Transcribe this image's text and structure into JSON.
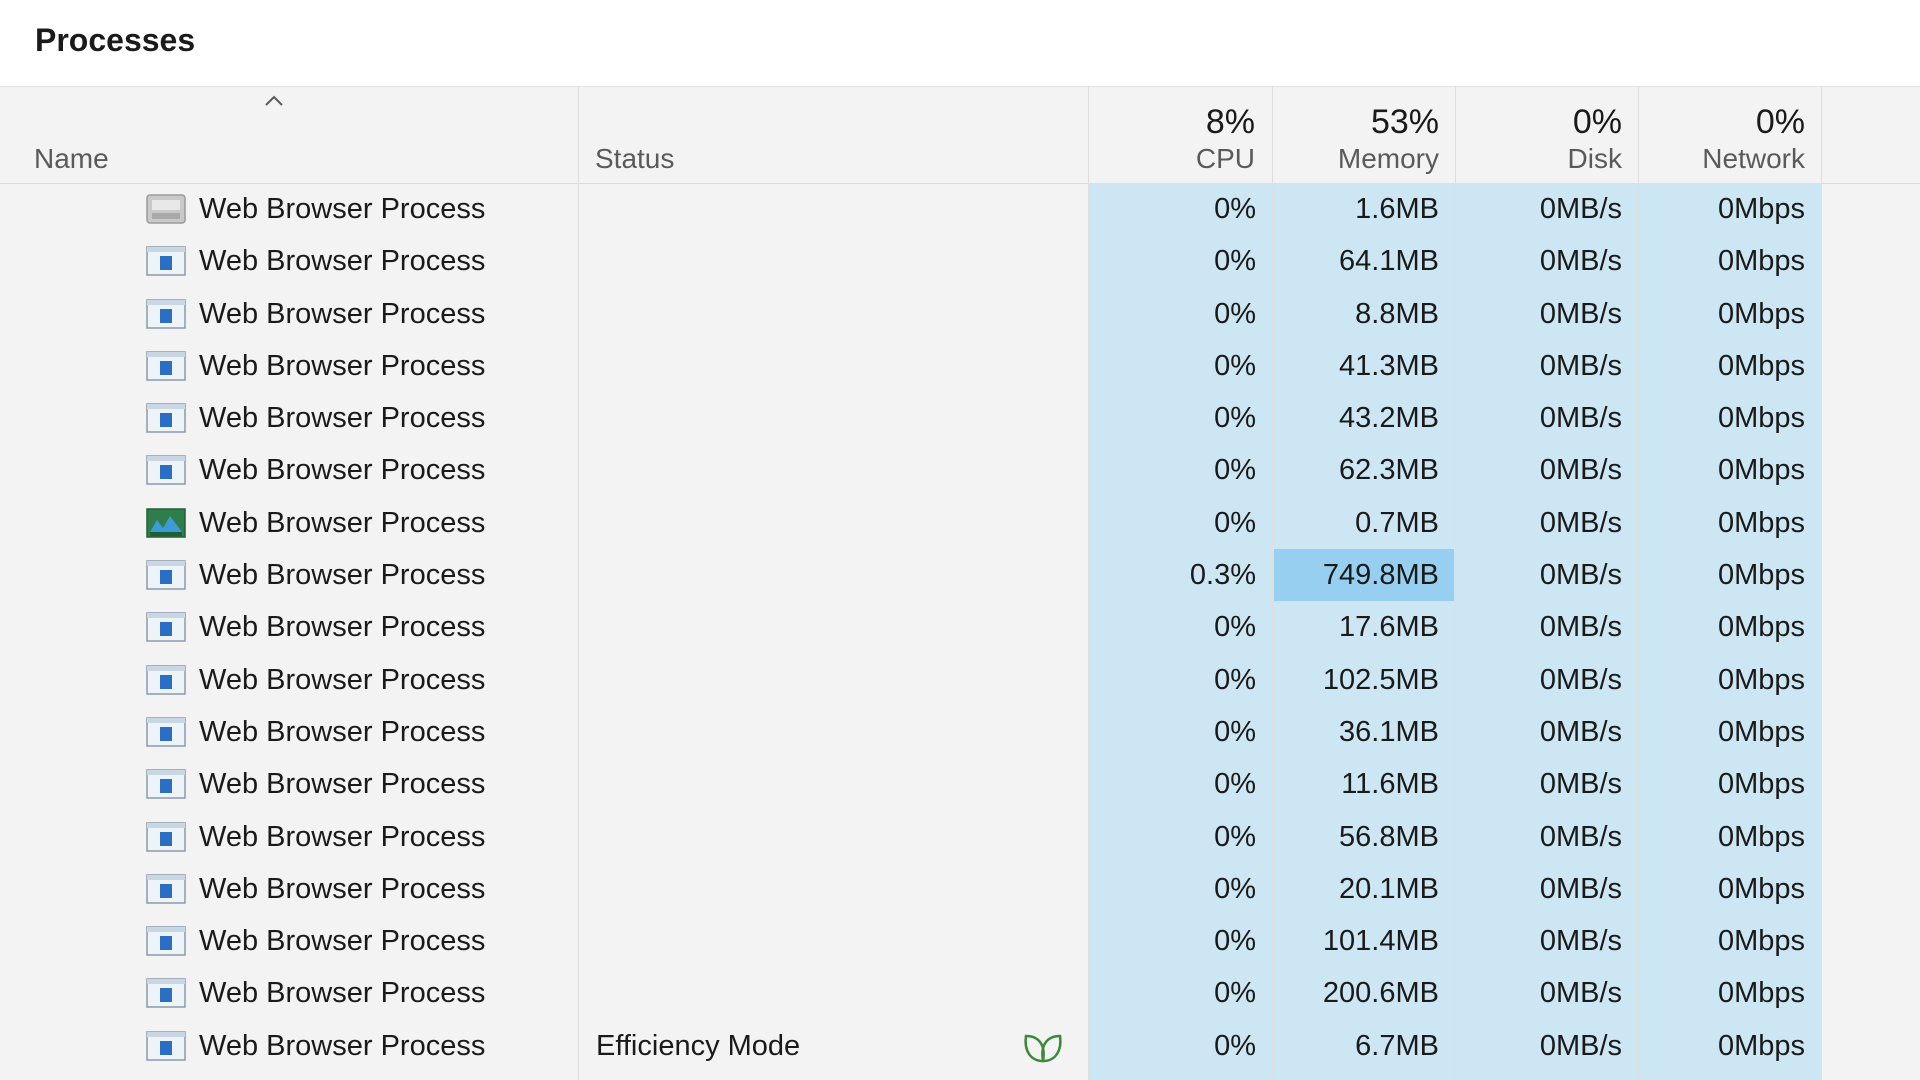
{
  "window": {
    "title": "Processes"
  },
  "columns": {
    "name": {
      "label": "Name"
    },
    "status": {
      "label": "Status"
    },
    "cpu": {
      "label": "CPU",
      "total": "8%"
    },
    "memory": {
      "label": "Memory",
      "total": "53%"
    },
    "disk": {
      "label": "Disk",
      "total": "0%"
    },
    "network": {
      "label": "Network",
      "total": "0%"
    }
  },
  "sort": {
    "column": "name",
    "direction": "ascending",
    "icon": "chevron-up-icon"
  },
  "colors": {
    "metric_background": "#cde6f3",
    "memory_highlight": "#96cff0",
    "efficiency_leaf": "#3a8a3a"
  },
  "processes": [
    {
      "name": "Web Browser Process",
      "icon": "gray-process-icon",
      "status": "",
      "cpu": "0%",
      "memory": "1.6MB",
      "disk": "0MB/s",
      "network": "0Mbps"
    },
    {
      "name": "Web Browser Process",
      "icon": "window-process-icon",
      "status": "",
      "cpu": "0%",
      "memory": "64.1MB",
      "disk": "0MB/s",
      "network": "0Mbps"
    },
    {
      "name": "Web Browser Process",
      "icon": "window-process-icon",
      "status": "",
      "cpu": "0%",
      "memory": "8.8MB",
      "disk": "0MB/s",
      "network": "0Mbps"
    },
    {
      "name": "Web Browser Process",
      "icon": "window-process-icon",
      "status": "",
      "cpu": "0%",
      "memory": "41.3MB",
      "disk": "0MB/s",
      "network": "0Mbps"
    },
    {
      "name": "Web Browser Process",
      "icon": "window-process-icon",
      "status": "",
      "cpu": "0%",
      "memory": "43.2MB",
      "disk": "0MB/s",
      "network": "0Mbps"
    },
    {
      "name": "Web Browser Process",
      "icon": "window-process-icon",
      "status": "",
      "cpu": "0%",
      "memory": "62.3MB",
      "disk": "0MB/s",
      "network": "0Mbps"
    },
    {
      "name": "Web Browser Process",
      "icon": "green-process-icon",
      "status": "",
      "cpu": "0%",
      "memory": "0.7MB",
      "disk": "0MB/s",
      "network": "0Mbps"
    },
    {
      "name": "Web Browser Process",
      "icon": "window-process-icon",
      "status": "",
      "cpu": "0.3%",
      "memory": "749.8MB",
      "memory_highlight": true,
      "disk": "0MB/s",
      "network": "0Mbps"
    },
    {
      "name": "Web Browser Process",
      "icon": "window-process-icon",
      "status": "",
      "cpu": "0%",
      "memory": "17.6MB",
      "disk": "0MB/s",
      "network": "0Mbps"
    },
    {
      "name": "Web Browser Process",
      "icon": "window-process-icon",
      "status": "",
      "cpu": "0%",
      "memory": "102.5MB",
      "disk": "0MB/s",
      "network": "0Mbps"
    },
    {
      "name": "Web Browser Process",
      "icon": "window-process-icon",
      "status": "",
      "cpu": "0%",
      "memory": "36.1MB",
      "disk": "0MB/s",
      "network": "0Mbps"
    },
    {
      "name": "Web Browser Process",
      "icon": "window-process-icon",
      "status": "",
      "cpu": "0%",
      "memory": "11.6MB",
      "disk": "0MB/s",
      "network": "0Mbps"
    },
    {
      "name": "Web Browser Process",
      "icon": "window-process-icon",
      "status": "",
      "cpu": "0%",
      "memory": "56.8MB",
      "disk": "0MB/s",
      "network": "0Mbps"
    },
    {
      "name": "Web Browser Process",
      "icon": "window-process-icon",
      "status": "",
      "cpu": "0%",
      "memory": "20.1MB",
      "disk": "0MB/s",
      "network": "0Mbps"
    },
    {
      "name": "Web Browser Process",
      "icon": "window-process-icon",
      "status": "",
      "cpu": "0%",
      "memory": "101.4MB",
      "disk": "0MB/s",
      "network": "0Mbps"
    },
    {
      "name": "Web Browser Process",
      "icon": "window-process-icon",
      "status": "",
      "cpu": "0%",
      "memory": "200.6MB",
      "disk": "0MB/s",
      "network": "0Mbps"
    },
    {
      "name": "Web Browser Process",
      "icon": "window-process-icon",
      "status": "Efficiency Mode",
      "status_icon": "leaf-icon",
      "cpu": "0%",
      "memory": "6.7MB",
      "disk": "0MB/s",
      "network": "0Mbps"
    }
  ]
}
